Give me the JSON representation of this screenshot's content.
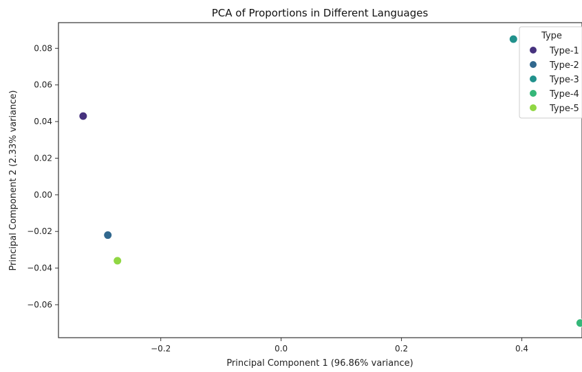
{
  "chart_data": {
    "type": "scatter",
    "title": "PCA of Proportions in Different Languages",
    "xlabel": "Principal Component 1 (96.86% variance)",
    "ylabel": "Principal Component 2 (2.33% variance)",
    "xlim": [
      -0.37,
      0.5
    ],
    "ylim": [
      -0.078,
      0.094
    ],
    "xticks": [
      -0.2,
      0.0,
      0.2,
      0.4
    ],
    "xtick_labels": [
      "−0.2",
      "0.0",
      "0.2",
      "0.4"
    ],
    "yticks": [
      0.08,
      0.06,
      0.04,
      0.02,
      0.0,
      -0.02,
      -0.04,
      -0.06
    ],
    "ytick_labels": [
      "0.08",
      "0.06",
      "0.04",
      "0.02",
      "0.00",
      "−0.02",
      "−0.04",
      "−0.06"
    ],
    "grid": false,
    "legend": {
      "title": "Type",
      "placement": "top-right"
    },
    "series": [
      {
        "name": "Type-1",
        "color": "#46327e",
        "x": [
          -0.329
        ],
        "y": [
          0.043
        ]
      },
      {
        "name": "Type-2",
        "color": "#31688e",
        "x": [
          -0.288
        ],
        "y": [
          -0.022
        ]
      },
      {
        "name": "Type-3",
        "color": "#21918c",
        "x": [
          0.386
        ],
        "y": [
          0.085
        ]
      },
      {
        "name": "Type-4",
        "color": "#35b779",
        "x": [
          0.497
        ],
        "y": [
          -0.07
        ]
      },
      {
        "name": "Type-5",
        "color": "#90d743",
        "x": [
          -0.272
        ],
        "y": [
          -0.036
        ]
      }
    ]
  }
}
